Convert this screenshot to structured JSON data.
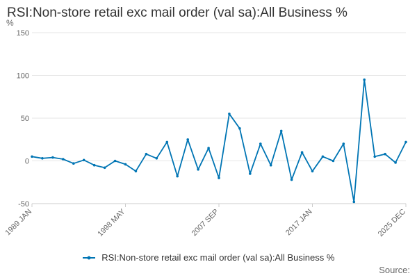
{
  "title": "RSI:Non-store retail exc mail order (val sa):All Business %",
  "source_label": "Source:",
  "colors": {
    "series": "#0075b4",
    "grid": "#e6e6e6",
    "axis_text": "#666666"
  },
  "chart_data": {
    "type": "line",
    "unit_label": "%",
    "ylim": [
      -50,
      150
    ],
    "y_ticks": [
      -50,
      0,
      50,
      100,
      150
    ],
    "x_tick_labels": [
      "1989 JAN",
      "1998 MAY",
      "2007 SEP",
      "2017 JAN",
      "2025 DEC"
    ],
    "grid": true,
    "legend_placement": "bottom",
    "series": [
      {
        "name": "RSI:Non-store retail exc mail order (val sa):All Business %",
        "x": [
          "1989",
          "1990",
          "1991",
          "1992",
          "1993",
          "1994",
          "1995",
          "1996",
          "1997",
          "1998",
          "1999",
          "2000",
          "2001",
          "2002",
          "2003",
          "2004",
          "2005",
          "2006",
          "2007",
          "2008",
          "2009",
          "2010",
          "2011",
          "2012",
          "2013",
          "2014",
          "2015",
          "2016",
          "2017",
          "2018",
          "2019",
          "2020",
          "2021",
          "2022",
          "2023",
          "2024",
          "2025"
        ],
        "values": [
          5,
          3,
          4,
          2,
          -3,
          1,
          -5,
          -8,
          0,
          -4,
          -12,
          8,
          3,
          22,
          -18,
          25,
          -10,
          15,
          -20,
          55,
          38,
          -15,
          20,
          -5,
          35,
          -22,
          10,
          -12,
          5,
          0,
          20,
          -48,
          95,
          5,
          8,
          -2,
          22
        ]
      }
    ]
  }
}
